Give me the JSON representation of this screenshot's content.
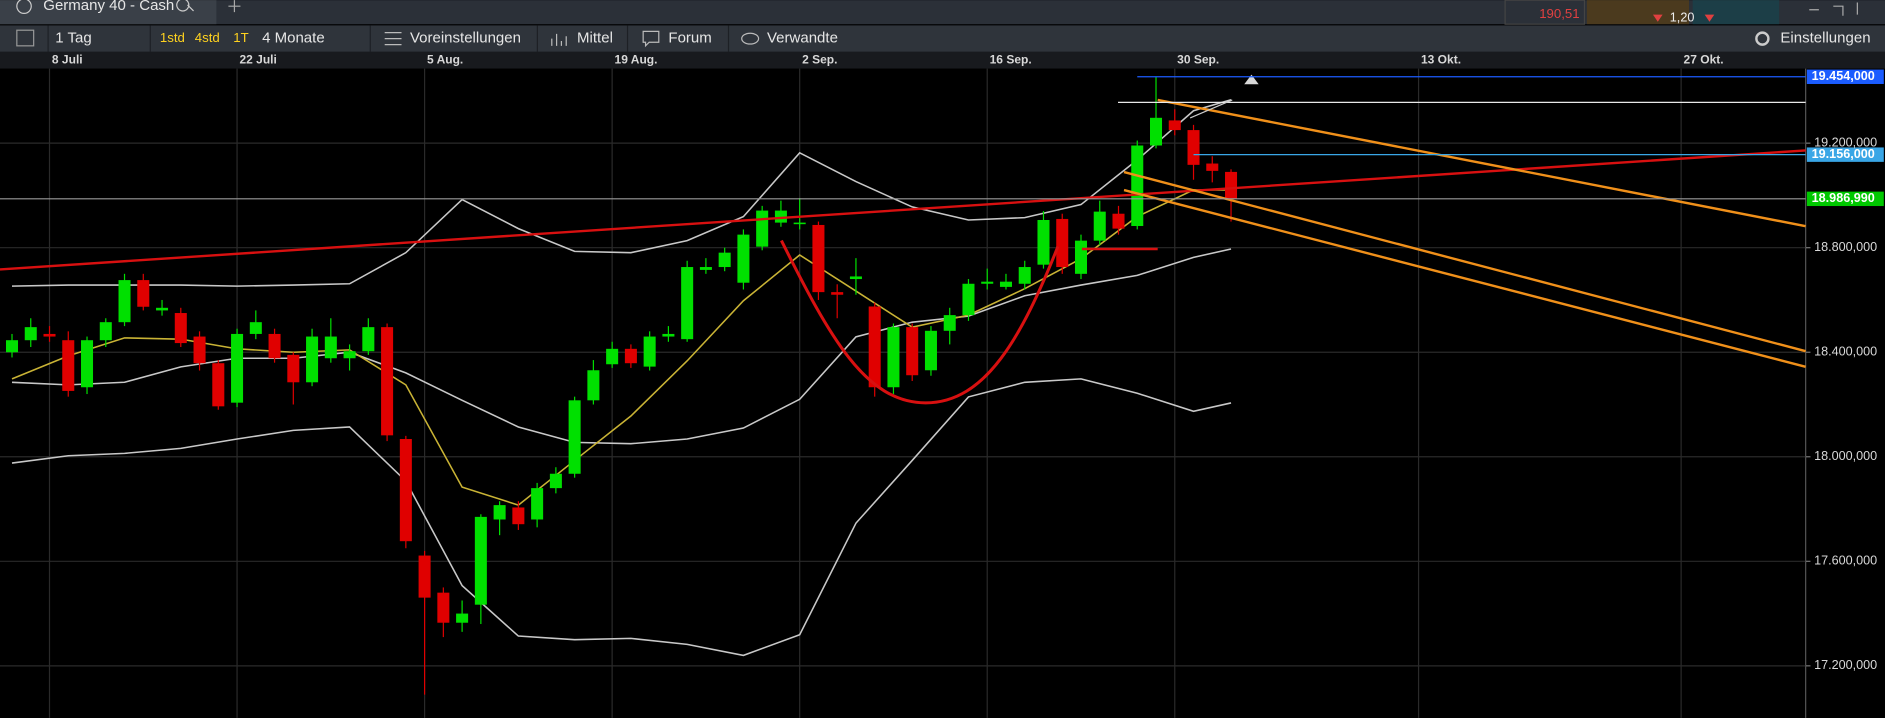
{
  "header": {
    "quotes": [
      "190,51",
      "1,20"
    ]
  },
  "toolbar": {
    "items": [
      "1 Tag",
      "1std",
      "4std",
      "1T",
      "4 Monate",
      "Voreinstellungen",
      "Mittel",
      "Forum",
      "Verwandte",
      "Einstellungen"
    ]
  },
  "chart_data": {
    "type": "candlestick",
    "title": "Germany 40 - Cash",
    "xlim": [
      -0.64,
      95.64
    ],
    "xticks": [
      {
        "value": 2,
        "label": "8 Juli"
      },
      {
        "value": 12,
        "label": "22 Juli"
      },
      {
        "value": 22,
        "label": "5 Aug."
      },
      {
        "value": 32,
        "label": "19 Aug."
      },
      {
        "value": 42,
        "label": "2 Sep."
      },
      {
        "value": 52,
        "label": "16 Sep."
      },
      {
        "value": 62,
        "label": "30 Sep."
      },
      {
        "value": 75,
        "label": "13 Okt."
      },
      {
        "value": 89,
        "label": "27 Okt."
      }
    ],
    "ylim": [
      17001,
      19485
    ],
    "yticks": [
      {
        "value": 17200,
        "label": "17.200,000"
      },
      {
        "value": 17600,
        "label": "17.600,000"
      },
      {
        "value": 18000,
        "label": "18.000,000"
      },
      {
        "value": 18400,
        "label": "18.400,000"
      },
      {
        "value": 18800,
        "label": "18.800,000"
      },
      {
        "value": 19200,
        "label": "19.200,000"
      }
    ],
    "grid": true,
    "up_color": "#00e000",
    "down_color": "#e00000",
    "x": [
      0,
      1,
      2,
      3,
      4,
      5,
      6,
      7,
      8,
      9,
      10,
      11,
      12,
      13,
      14,
      15,
      16,
      17,
      18,
      19,
      20,
      21,
      22,
      23,
      24,
      25,
      26,
      27,
      28,
      29,
      30,
      31,
      32,
      33,
      34,
      35,
      36,
      37,
      38,
      39,
      40,
      41,
      42,
      43,
      44,
      45,
      46,
      47,
      48,
      49,
      50,
      51,
      52,
      53,
      54,
      55,
      56,
      57,
      58,
      59,
      60,
      61,
      62,
      63,
      64,
      65
    ],
    "open": [
      18400,
      18446,
      18470,
      18446,
      18266,
      18446,
      18515,
      18676,
      18560,
      18550,
      18460,
      18358,
      18207,
      18470,
      18470,
      18390,
      18285,
      18377,
      18377,
      18404,
      18496,
      18068,
      17622,
      17480,
      17365,
      17434,
      17760,
      17806,
      17760,
      17880,
      17935,
      18216,
      18354,
      18413,
      18345,
      18460,
      18450,
      18715,
      18726,
      18666,
      18804,
      18896,
      18890,
      18887,
      18630,
      18680,
      18575,
      18266,
      18496,
      18331,
      18482,
      18542,
      18662,
      18650,
      18662,
      18735,
      18910,
      18700,
      18827,
      18930,
      18883,
      19191,
      19287,
      19250,
      19122,
      19090
    ],
    "high": [
      18470,
      18530,
      18500,
      18480,
      18460,
      18530,
      18700,
      18700,
      18600,
      18570,
      18480,
      18370,
      18490,
      18560,
      18490,
      18400,
      18490,
      18530,
      18430,
      18530,
      18510,
      18080,
      17640,
      17500,
      17450,
      17780,
      17830,
      17830,
      17900,
      17960,
      18230,
      18370,
      18440,
      18430,
      18480,
      18500,
      18750,
      18760,
      18800,
      18870,
      18960,
      18980,
      18990,
      18900,
      18660,
      18760,
      18590,
      18510,
      18510,
      18500,
      18570,
      18680,
      18720,
      18700,
      18750,
      18940,
      18930,
      18850,
      18980,
      18960,
      19210,
      19454,
      19330,
      19270,
      19150,
      19100
    ],
    "low": [
      18380,
      18420,
      18440,
      18230,
      18240,
      18420,
      18500,
      18560,
      18540,
      18420,
      18330,
      18180,
      18190,
      18450,
      18360,
      18200,
      18270,
      18360,
      18330,
      18390,
      18060,
      17650,
      17090,
      17310,
      17330,
      17360,
      17700,
      17720,
      17730,
      17860,
      17920,
      18200,
      18340,
      18340,
      18330,
      18440,
      18440,
      18700,
      18710,
      18640,
      18790,
      18880,
      18870,
      18600,
      18530,
      18620,
      18230,
      18240,
      18290,
      18310,
      18430,
      18520,
      18640,
      18640,
      18640,
      18720,
      18700,
      18680,
      18810,
      18850,
      18870,
      19180,
      19230,
      19060,
      19050,
      18900
    ],
    "close": [
      18446,
      18496,
      18460,
      18252,
      18446,
      18515,
      18676,
      18574,
      18570,
      18435,
      18358,
      18193,
      18470,
      18515,
      18377,
      18285,
      18460,
      18460,
      18404,
      18496,
      18082,
      17677,
      17461,
      17365,
      17400,
      17770,
      17815,
      17742,
      17880,
      17935,
      18216,
      18331,
      18413,
      18358,
      18460,
      18470,
      18726,
      18726,
      18781,
      18850,
      18942,
      18942,
      18896,
      18630,
      18620,
      18690,
      18266,
      18496,
      18312,
      18482,
      18542,
      18662,
      18670,
      18670,
      18726,
      18906,
      18726,
      18827,
      18938,
      18873,
      19191,
      19297,
      19250,
      19117,
      19094,
      18986.99
    ],
    "overlays": [
      {
        "color": "#c8c8c8",
        "x": [
          0,
          3,
          6,
          9,
          12,
          15,
          18,
          21,
          24,
          27,
          30,
          33,
          36,
          39,
          42,
          45,
          48,
          51,
          54,
          57,
          60,
          63,
          65
        ],
        "values": [
          18653,
          18657,
          18657,
          18657,
          18653,
          18657,
          18662,
          18781,
          18984,
          18873,
          18786,
          18781,
          18827,
          18919,
          19163,
          19053,
          18956,
          18906,
          18915,
          18965,
          19136,
          19324,
          19366
        ]
      },
      {
        "color": "#c8c8c8",
        "x": [
          0,
          3,
          6,
          9,
          12,
          15,
          18,
          21,
          24,
          27,
          30,
          33,
          36,
          39,
          42,
          45,
          48,
          51,
          54,
          57,
          60,
          63,
          65
        ],
        "values": [
          18285,
          18275,
          18285,
          18344,
          18377,
          18377,
          18400,
          18321,
          18216,
          18114,
          18055,
          18050,
          18068,
          18110,
          18220,
          18459,
          18515,
          18538,
          18616,
          18657,
          18694,
          18763,
          18795
        ]
      },
      {
        "color": "#c8c8c8",
        "x": [
          0,
          3,
          6,
          9,
          12,
          15,
          18,
          21,
          24,
          27,
          30,
          33,
          36,
          39,
          42,
          45,
          48,
          51,
          54,
          57,
          60,
          63,
          65
        ],
        "values": [
          17976,
          18004,
          18013,
          18032,
          18068,
          18101,
          18114,
          17907,
          17507,
          17314,
          17300,
          17305,
          17282,
          17240,
          17319,
          17746,
          17986,
          18229,
          18285,
          18298,
          18243,
          18174,
          18206
        ]
      },
      {
        "color": "#c9b335",
        "x": [
          0,
          3,
          6,
          9,
          12,
          15,
          18,
          21,
          24,
          27,
          30,
          33,
          36,
          39,
          42,
          45,
          48,
          51,
          54,
          57,
          60,
          63,
          65
        ],
        "values": [
          18298,
          18386,
          18455,
          18450,
          18413,
          18400,
          18409,
          18275,
          17884,
          17815,
          17986,
          18156,
          18367,
          18597,
          18772,
          18634,
          18496,
          18542,
          18643,
          18758,
          18919,
          19021,
          19021
        ]
      }
    ],
    "price_lines": [
      {
        "value": 19454,
        "label": "19.454,000",
        "color": "#1b5cff",
        "from": 60
      },
      {
        "value": 19156,
        "label": "19.156,000",
        "color": "#39a6e6",
        "from": 63
      },
      {
        "value": 18986.99,
        "label": "18.986,990",
        "color": "#00c800",
        "from": -0.64
      }
    ]
  }
}
